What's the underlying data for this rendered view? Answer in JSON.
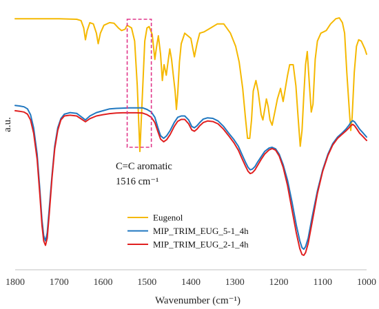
{
  "chart_data": {
    "type": "line",
    "xlabel": "Wavenumber (cm⁻¹)",
    "ylabel": "a.u.",
    "xlim": [
      1800,
      1000
    ],
    "x_reversed": true,
    "x_ticks": [
      1800,
      1700,
      1600,
      1500,
      1400,
      1300,
      1200,
      1100,
      1000
    ],
    "y_ticks_shown": false,
    "grid": false,
    "legend_position": "bottom-center",
    "annotation": {
      "text_line1": "C=C aromatic",
      "text_line2": "1516 cm⁻¹",
      "box_x_range": [
        1545,
        1490
      ],
      "box_color": "#e0368a"
    },
    "series": [
      {
        "name": "Eugenol",
        "color": "#f5b800",
        "points": [
          [
            1800,
            0.955
          ],
          [
            1700,
            0.955
          ],
          [
            1660,
            0.953
          ],
          [
            1650,
            0.948
          ],
          [
            1644,
            0.92
          ],
          [
            1640,
            0.875
          ],
          [
            1636,
            0.91
          ],
          [
            1630,
            0.94
          ],
          [
            1622,
            0.935
          ],
          [
            1615,
            0.9
          ],
          [
            1611,
            0.86
          ],
          [
            1606,
            0.9
          ],
          [
            1598,
            0.93
          ],
          [
            1585,
            0.94
          ],
          [
            1575,
            0.938
          ],
          [
            1565,
            0.92
          ],
          [
            1558,
            0.91
          ],
          [
            1550,
            0.915
          ],
          [
            1545,
            0.93
          ],
          [
            1535,
            0.92
          ],
          [
            1528,
            0.87
          ],
          [
            1522,
            0.7
          ],
          [
            1516,
            0.45
          ],
          [
            1510,
            0.68
          ],
          [
            1505,
            0.87
          ],
          [
            1500,
            0.92
          ],
          [
            1495,
            0.925
          ],
          [
            1488,
            0.895
          ],
          [
            1482,
            0.8
          ],
          [
            1478,
            0.85
          ],
          [
            1474,
            0.89
          ],
          [
            1469,
            0.82
          ],
          [
            1465,
            0.72
          ],
          [
            1461,
            0.78
          ],
          [
            1456,
            0.74
          ],
          [
            1452,
            0.79
          ],
          [
            1448,
            0.84
          ],
          [
            1444,
            0.8
          ],
          [
            1440,
            0.74
          ],
          [
            1436,
            0.68
          ],
          [
            1433,
            0.61
          ],
          [
            1430,
            0.67
          ],
          [
            1426,
            0.79
          ],
          [
            1422,
            0.86
          ],
          [
            1414,
            0.9
          ],
          [
            1400,
            0.88
          ],
          [
            1392,
            0.81
          ],
          [
            1386,
            0.86
          ],
          [
            1380,
            0.9
          ],
          [
            1370,
            0.905
          ],
          [
            1355,
            0.92
          ],
          [
            1340,
            0.935
          ],
          [
            1325,
            0.935
          ],
          [
            1310,
            0.9
          ],
          [
            1298,
            0.85
          ],
          [
            1290,
            0.79
          ],
          [
            1282,
            0.69
          ],
          [
            1276,
            0.58
          ],
          [
            1271,
            0.5
          ],
          [
            1266,
            0.5
          ],
          [
            1262,
            0.57
          ],
          [
            1258,
            0.68
          ],
          [
            1252,
            0.72
          ],
          [
            1247,
            0.68
          ],
          [
            1240,
            0.59
          ],
          [
            1236,
            0.57
          ],
          [
            1232,
            0.61
          ],
          [
            1228,
            0.65
          ],
          [
            1224,
            0.62
          ],
          [
            1220,
            0.57
          ],
          [
            1215,
            0.55
          ],
          [
            1209,
            0.6
          ],
          [
            1203,
            0.65
          ],
          [
            1196,
            0.69
          ],
          [
            1190,
            0.64
          ],
          [
            1185,
            0.69
          ],
          [
            1180,
            0.74
          ],
          [
            1175,
            0.78
          ],
          [
            1167,
            0.78
          ],
          [
            1161,
            0.7
          ],
          [
            1156,
            0.58
          ],
          [
            1151,
            0.47
          ],
          [
            1147,
            0.53
          ],
          [
            1143,
            0.66
          ],
          [
            1139,
            0.78
          ],
          [
            1135,
            0.83
          ],
          [
            1130,
            0.7
          ],
          [
            1126,
            0.6
          ],
          [
            1122,
            0.63
          ],
          [
            1117,
            0.8
          ],
          [
            1112,
            0.87
          ],
          [
            1104,
            0.9
          ],
          [
            1092,
            0.91
          ],
          [
            1082,
            0.935
          ],
          [
            1070,
            0.955
          ],
          [
            1062,
            0.958
          ],
          [
            1055,
            0.94
          ],
          [
            1050,
            0.9
          ],
          [
            1045,
            0.75
          ],
          [
            1039,
            0.6
          ],
          [
            1036,
            0.53
          ],
          [
            1033,
            0.58
          ],
          [
            1028,
            0.75
          ],
          [
            1023,
            0.85
          ],
          [
            1018,
            0.875
          ],
          [
            1012,
            0.87
          ],
          [
            1004,
            0.84
          ],
          [
            1000,
            0.82
          ]
        ]
      },
      {
        "name": "MIP_TRIM_EUG_5-1_4h",
        "color": "#1f77c0",
        "points": [
          [
            1800,
            0.625
          ],
          [
            1790,
            0.623
          ],
          [
            1780,
            0.62
          ],
          [
            1772,
            0.612
          ],
          [
            1765,
            0.59
          ],
          [
            1758,
            0.54
          ],
          [
            1750,
            0.44
          ],
          [
            1744,
            0.31
          ],
          [
            1739,
            0.19
          ],
          [
            1735,
            0.13
          ],
          [
            1731,
            0.11
          ],
          [
            1727,
            0.14
          ],
          [
            1722,
            0.24
          ],
          [
            1716,
            0.36
          ],
          [
            1710,
            0.47
          ],
          [
            1703,
            0.54
          ],
          [
            1696,
            0.575
          ],
          [
            1688,
            0.592
          ],
          [
            1675,
            0.598
          ],
          [
            1660,
            0.595
          ],
          [
            1648,
            0.58
          ],
          [
            1640,
            0.57
          ],
          [
            1630,
            0.585
          ],
          [
            1615,
            0.598
          ],
          [
            1600,
            0.605
          ],
          [
            1585,
            0.612
          ],
          [
            1570,
            0.614
          ],
          [
            1555,
            0.615
          ],
          [
            1540,
            0.616
          ],
          [
            1525,
            0.616
          ],
          [
            1510,
            0.616
          ],
          [
            1500,
            0.61
          ],
          [
            1490,
            0.6
          ],
          [
            1482,
            0.58
          ],
          [
            1475,
            0.54
          ],
          [
            1469,
            0.51
          ],
          [
            1462,
            0.5
          ],
          [
            1455,
            0.51
          ],
          [
            1447,
            0.53
          ],
          [
            1438,
            0.56
          ],
          [
            1430,
            0.58
          ],
          [
            1422,
            0.585
          ],
          [
            1414,
            0.585
          ],
          [
            1405,
            0.57
          ],
          [
            1398,
            0.545
          ],
          [
            1392,
            0.54
          ],
          [
            1386,
            0.548
          ],
          [
            1380,
            0.56
          ],
          [
            1372,
            0.573
          ],
          [
            1362,
            0.578
          ],
          [
            1350,
            0.576
          ],
          [
            1338,
            0.566
          ],
          [
            1326,
            0.546
          ],
          [
            1314,
            0.52
          ],
          [
            1302,
            0.495
          ],
          [
            1292,
            0.47
          ],
          [
            1284,
            0.44
          ],
          [
            1276,
            0.41
          ],
          [
            1270,
            0.39
          ],
          [
            1265,
            0.38
          ],
          [
            1260,
            0.383
          ],
          [
            1254,
            0.393
          ],
          [
            1248,
            0.41
          ],
          [
            1240,
            0.43
          ],
          [
            1232,
            0.45
          ],
          [
            1222,
            0.463
          ],
          [
            1215,
            0.466
          ],
          [
            1207,
            0.46
          ],
          [
            1199,
            0.44
          ],
          [
            1190,
            0.4
          ],
          [
            1180,
            0.34
          ],
          [
            1170,
            0.26
          ],
          [
            1160,
            0.17
          ],
          [
            1152,
            0.11
          ],
          [
            1147,
            0.084
          ],
          [
            1143,
            0.078
          ],
          [
            1139,
            0.088
          ],
          [
            1133,
            0.12
          ],
          [
            1124,
            0.2
          ],
          [
            1112,
            0.3
          ],
          [
            1100,
            0.38
          ],
          [
            1088,
            0.44
          ],
          [
            1077,
            0.48
          ],
          [
            1066,
            0.505
          ],
          [
            1056,
            0.52
          ],
          [
            1047,
            0.535
          ],
          [
            1040,
            0.55
          ],
          [
            1035,
            0.563
          ],
          [
            1031,
            0.567
          ],
          [
            1027,
            0.562
          ],
          [
            1022,
            0.55
          ],
          [
            1016,
            0.535
          ],
          [
            1009,
            0.522
          ],
          [
            1000,
            0.505
          ]
        ]
      },
      {
        "name": "MIP_TRIM_EUG_2-1_4h",
        "color": "#e01f1f",
        "points": [
          [
            1800,
            0.605
          ],
          [
            1790,
            0.603
          ],
          [
            1780,
            0.6
          ],
          [
            1772,
            0.592
          ],
          [
            1765,
            0.57
          ],
          [
            1758,
            0.52
          ],
          [
            1750,
            0.42
          ],
          [
            1744,
            0.29
          ],
          [
            1739,
            0.17
          ],
          [
            1735,
            0.11
          ],
          [
            1731,
            0.093
          ],
          [
            1727,
            0.12
          ],
          [
            1722,
            0.22
          ],
          [
            1716,
            0.35
          ],
          [
            1710,
            0.46
          ],
          [
            1703,
            0.53
          ],
          [
            1696,
            0.57
          ],
          [
            1688,
            0.585
          ],
          [
            1675,
            0.588
          ],
          [
            1660,
            0.585
          ],
          [
            1648,
            0.572
          ],
          [
            1640,
            0.563
          ],
          [
            1630,
            0.575
          ],
          [
            1615,
            0.585
          ],
          [
            1600,
            0.59
          ],
          [
            1585,
            0.594
          ],
          [
            1570,
            0.596
          ],
          [
            1555,
            0.597
          ],
          [
            1540,
            0.597
          ],
          [
            1525,
            0.597
          ],
          [
            1510,
            0.596
          ],
          [
            1500,
            0.59
          ],
          [
            1490,
            0.58
          ],
          [
            1482,
            0.56
          ],
          [
            1475,
            0.525
          ],
          [
            1469,
            0.497
          ],
          [
            1462,
            0.487
          ],
          [
            1455,
            0.495
          ],
          [
            1447,
            0.515
          ],
          [
            1438,
            0.545
          ],
          [
            1430,
            0.565
          ],
          [
            1422,
            0.572
          ],
          [
            1414,
            0.572
          ],
          [
            1405,
            0.555
          ],
          [
            1398,
            0.532
          ],
          [
            1392,
            0.527
          ],
          [
            1386,
            0.535
          ],
          [
            1380,
            0.548
          ],
          [
            1372,
            0.56
          ],
          [
            1362,
            0.566
          ],
          [
            1350,
            0.564
          ],
          [
            1338,
            0.555
          ],
          [
            1326,
            0.535
          ],
          [
            1314,
            0.51
          ],
          [
            1302,
            0.483
          ],
          [
            1292,
            0.455
          ],
          [
            1284,
            0.425
          ],
          [
            1276,
            0.395
          ],
          [
            1270,
            0.375
          ],
          [
            1265,
            0.366
          ],
          [
            1260,
            0.369
          ],
          [
            1254,
            0.38
          ],
          [
            1248,
            0.397
          ],
          [
            1240,
            0.42
          ],
          [
            1232,
            0.44
          ],
          [
            1222,
            0.456
          ],
          [
            1215,
            0.461
          ],
          [
            1207,
            0.455
          ],
          [
            1199,
            0.433
          ],
          [
            1190,
            0.39
          ],
          [
            1180,
            0.32
          ],
          [
            1170,
            0.23
          ],
          [
            1160,
            0.14
          ],
          [
            1152,
            0.08
          ],
          [
            1147,
            0.058
          ],
          [
            1143,
            0.055
          ],
          [
            1139,
            0.065
          ],
          [
            1133,
            0.1
          ],
          [
            1124,
            0.18
          ],
          [
            1112,
            0.29
          ],
          [
            1100,
            0.375
          ],
          [
            1088,
            0.435
          ],
          [
            1077,
            0.475
          ],
          [
            1066,
            0.5
          ],
          [
            1056,
            0.515
          ],
          [
            1047,
            0.528
          ],
          [
            1040,
            0.54
          ],
          [
            1035,
            0.55
          ],
          [
            1031,
            0.553
          ],
          [
            1027,
            0.547
          ],
          [
            1022,
            0.535
          ],
          [
            1016,
            0.52
          ],
          [
            1009,
            0.508
          ],
          [
            1000,
            0.492
          ]
        ]
      }
    ]
  }
}
